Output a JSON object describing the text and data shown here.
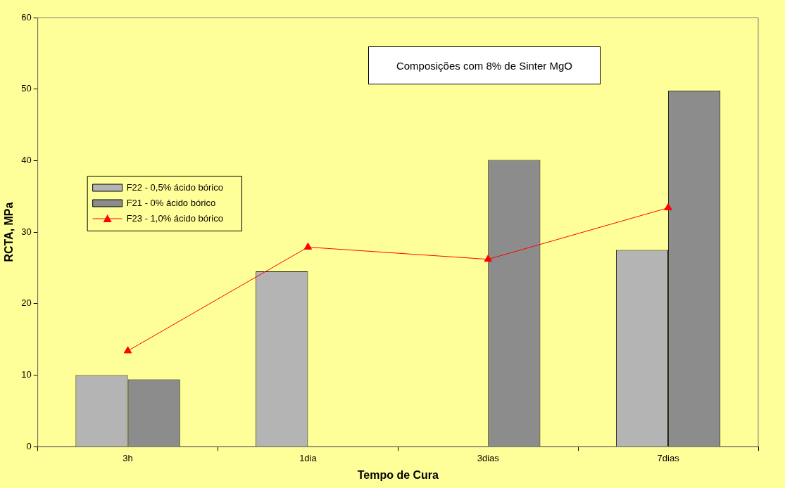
{
  "chart_data": {
    "type": "bar",
    "xlabel": "Tempo de Cura",
    "ylabel": "RCTA, MPa",
    "categories": [
      "3h",
      "1dia",
      "3dias",
      "7dias"
    ],
    "series": [
      {
        "name": "F22 - 0,5% ácido bórico",
        "color": "#b4b4b4",
        "values": [
          10,
          24.5,
          null,
          27.5
        ]
      },
      {
        "name": "F21 - 0% ácido bórico",
        "color": "#8c8c8c",
        "values": [
          9.4,
          null,
          40.1,
          49.8
        ]
      },
      {
        "name": "F23 - 1,0% ácido bórico",
        "type": "line",
        "color": "#ff0000",
        "marker": "triangle",
        "values": [
          13.4,
          27.9,
          26.2,
          33.4
        ]
      }
    ],
    "ylim": [
      0,
      60
    ],
    "yticks": [
      0,
      10,
      20,
      30,
      40,
      50,
      60
    ],
    "grid": false,
    "legend": "left",
    "annotations": [
      "Composições com 8% de Sinter MgO"
    ]
  }
}
